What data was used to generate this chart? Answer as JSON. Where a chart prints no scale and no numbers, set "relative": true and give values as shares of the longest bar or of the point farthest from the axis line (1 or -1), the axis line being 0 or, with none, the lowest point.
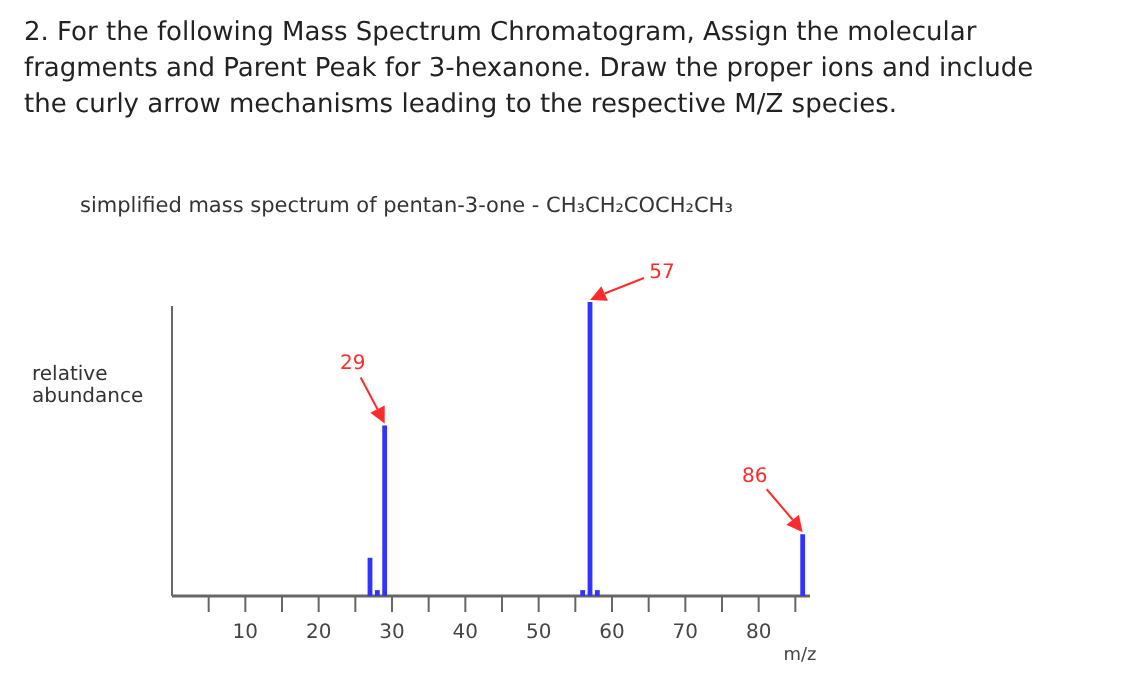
{
  "chart_data": {
    "type": "bar",
    "title": "2. For the following Mass Spectrum Chromatogram, Assign the molecular fragments and Parent Peak for 3-hexanone. Draw the proper ions and include the curly arrow mechanisms leading to the respective M/Z species.",
    "subtitle": "simplified mass spectrum of pentan-3-one  -  CH₃CH₂COCH₂CH₃",
    "xlabel": "m/z",
    "ylabel": "relative abundance",
    "relative": true,
    "x": [
      27,
      28,
      29,
      56,
      57,
      58,
      86
    ],
    "values": [
      0.13,
      0.02,
      0.58,
      0.02,
      1,
      0.02,
      0.21
    ],
    "color": "#3333ff",
    "xlim": [
      0,
      87
    ],
    "xticks": [
      {
        "value": 5,
        "label": null
      },
      10,
      {
        "value": 15,
        "label": null
      },
      20,
      {
        "value": 25,
        "label": null
      },
      30,
      {
        "value": 35,
        "label": null
      },
      40,
      {
        "value": 45,
        "label": null
      },
      50,
      {
        "value": 55,
        "label": null
      },
      60,
      {
        "value": 65,
        "label": null
      },
      70,
      {
        "value": 75,
        "label": null
      },
      80,
      {
        "value": 85,
        "label": null
      }
    ],
    "annotations": [
      {
        "text": "57",
        "x": 57,
        "y": 1
      },
      {
        "text": "29",
        "x": 29,
        "y": 0.58
      },
      {
        "text": "86",
        "x": 86,
        "y": 0.21
      }
    ]
  }
}
